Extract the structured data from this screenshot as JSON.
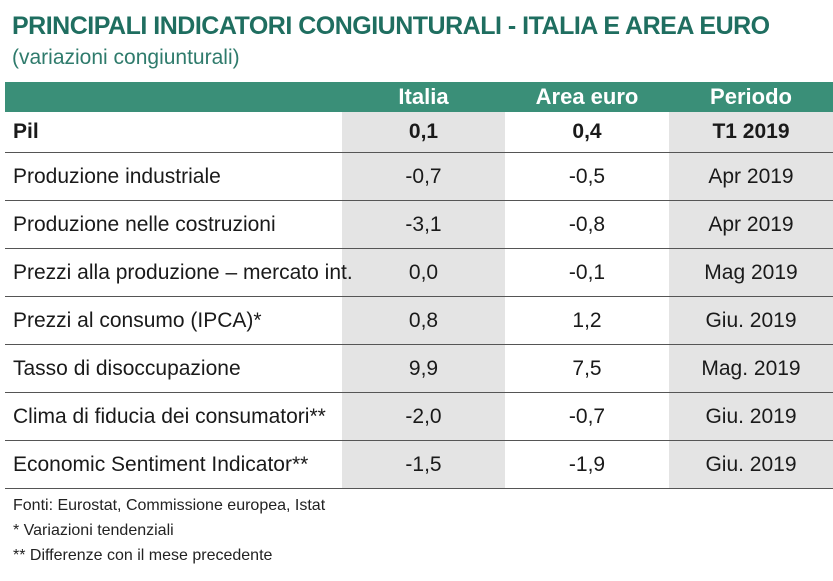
{
  "title": "PRINCIPALI INDICATORI CONGIUNTURALI - ITALIA E AREA EURO",
  "subtitle": "(variazioni congiunturali)",
  "table": {
    "headers": [
      "",
      "Italia",
      "Area euro",
      "Periodo"
    ],
    "rows": [
      {
        "label": "Pil",
        "italia": "0,1",
        "area_euro": "0,4",
        "periodo": "T1 2019"
      },
      {
        "label": "Produzione industriale",
        "italia": "-0,7",
        "area_euro": "-0,5",
        "periodo": "Apr 2019"
      },
      {
        "label": "Produzione nelle costruzioni",
        "italia": "-3,1",
        "area_euro": "-0,8",
        "periodo": "Apr 2019"
      },
      {
        "label": "Prezzi alla produzione – mercato int.",
        "italia": "0,0",
        "area_euro": "-0,1",
        "periodo": "Mag 2019"
      },
      {
        "label": "Prezzi al consumo (IPCA)*",
        "italia": "0,8",
        "area_euro": "1,2",
        "periodo": "Giu. 2019"
      },
      {
        "label": "Tasso di disoccupazione",
        "italia": "9,9",
        "area_euro": "7,5",
        "periodo": "Mag. 2019"
      },
      {
        "label": "Clima di fiducia dei consumatori**",
        "italia": "-2,0",
        "area_euro": "-0,7",
        "periodo": "Giu. 2019"
      },
      {
        "label": "Economic Sentiment Indicator**",
        "italia": "-1,5",
        "area_euro": "-1,9",
        "periodo": "Giu. 2019"
      }
    ]
  },
  "footer": {
    "sources": "Fonti: Eurostat, Commissione europea, Istat",
    "note1": "* Variazioni tendenziali",
    "note2": "** Differenze con il mese precedente"
  },
  "colors": {
    "title": "#1f6e60",
    "header_bg": "#3a8f78",
    "shaded_column": "#e4e4e4"
  }
}
